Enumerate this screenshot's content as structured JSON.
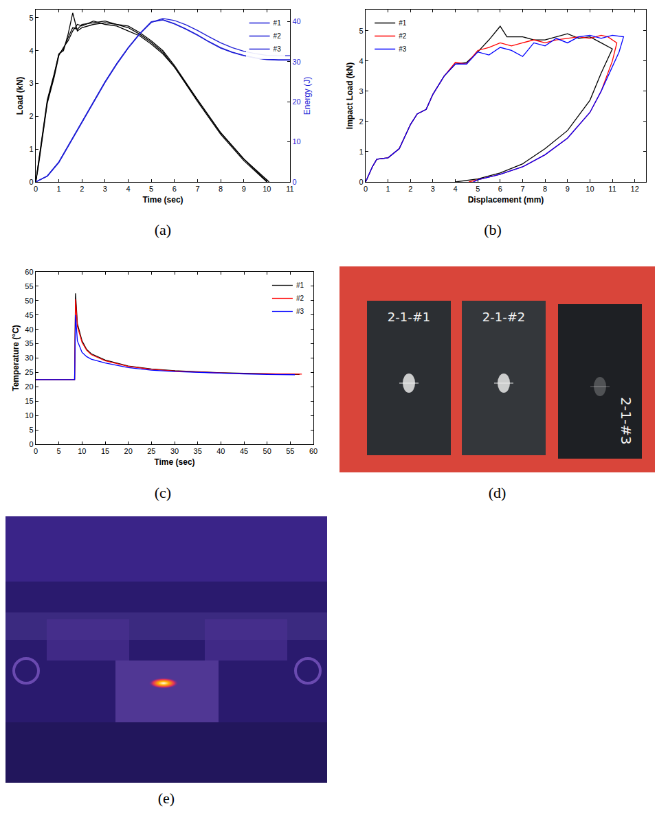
{
  "chart_data": [
    {
      "type": "line",
      "title": "(a)",
      "x_label": "Time (sec)",
      "y_label": "Load (kN)",
      "y2_label": "Energy (J)",
      "xlim": [
        0,
        11
      ],
      "xticks": [
        0,
        1,
        2,
        3,
        4,
        5,
        6,
        7,
        8,
        9,
        10,
        11
      ],
      "ylim": [
        0,
        5.25
      ],
      "yticks": [
        0,
        1,
        2,
        3,
        4,
        5
      ],
      "y2lim": [
        0,
        43
      ],
      "y2ticks": [
        0,
        10,
        20,
        30,
        40
      ],
      "legend": "upper right",
      "series": [
        {
          "color": "#000000",
          "axis": "y",
          "x": [
            0,
            0.1,
            0.3,
            0.5,
            0.8,
            1.0,
            1.2,
            1.4,
            1.6,
            1.8,
            2.0,
            2.5,
            3.0,
            3.5,
            4.0,
            4.5,
            5.0,
            5.5,
            6.0,
            7.0,
            8.0,
            9.0,
            10.0,
            10.1
          ],
          "values": [
            0,
            0.5,
            1.5,
            2.5,
            3.3,
            3.9,
            4.0,
            4.5,
            5.15,
            4.6,
            4.7,
            4.8,
            4.85,
            4.8,
            4.75,
            4.55,
            4.3,
            4.0,
            3.55,
            2.5,
            1.5,
            0.7,
            0.05,
            0
          ]
        },
        {
          "color": "#000000",
          "axis": "y",
          "x": [
            0,
            0.1,
            0.3,
            0.5,
            0.8,
            1.0,
            1.2,
            1.4,
            1.6,
            1.8,
            2.0,
            2.5,
            3.0,
            3.5,
            4.0,
            4.5,
            5.0,
            5.5,
            6.0,
            7.0,
            8.0,
            9.0,
            10.0
          ],
          "values": [
            0,
            0.4,
            1.4,
            2.4,
            3.2,
            3.85,
            4.1,
            4.3,
            4.6,
            4.8,
            4.75,
            4.9,
            4.8,
            4.75,
            4.6,
            4.45,
            4.2,
            3.9,
            3.5,
            2.45,
            1.45,
            0.65,
            0
          ]
        },
        {
          "color": "#000000",
          "axis": "y",
          "x": [
            0,
            0.1,
            0.3,
            0.5,
            0.8,
            1.0,
            1.2,
            1.4,
            1.6,
            1.8,
            2.0,
            2.5,
            3.0,
            3.5,
            4.0,
            4.5,
            5.0,
            5.5,
            6.0,
            7.0,
            8.0,
            9.0,
            10.0
          ],
          "values": [
            0,
            0.45,
            1.45,
            2.45,
            3.25,
            3.9,
            4.05,
            4.4,
            4.7,
            4.65,
            4.8,
            4.85,
            4.9,
            4.8,
            4.7,
            4.5,
            4.25,
            3.95,
            3.5,
            2.5,
            1.5,
            0.7,
            0.02
          ]
        },
        {
          "name": "#1",
          "color": "#1f1fd6",
          "axis": "y2",
          "x": [
            0,
            0.5,
            1,
            1.5,
            2,
            2.5,
            3,
            3.5,
            4,
            4.5,
            5,
            5.5,
            6,
            6.5,
            7,
            7.5,
            8,
            8.5,
            9,
            9.5,
            10,
            10.5,
            11
          ],
          "values": [
            0,
            1.5,
            5,
            10,
            15,
            20,
            25,
            29.5,
            33.5,
            37,
            40,
            40.5,
            39.5,
            38.2,
            36.7,
            35,
            33.5,
            32.4,
            31.6,
            31,
            30.6,
            30.5,
            30.5
          ]
        },
        {
          "name": "#2",
          "color": "#1f1fd6",
          "axis": "y2",
          "x": [
            0,
            0.5,
            1,
            1.5,
            2,
            2.5,
            3,
            3.5,
            4,
            4.5,
            5,
            5.5,
            6,
            6.5,
            7,
            7.5,
            8,
            8.5,
            9,
            9.5,
            10,
            10.5,
            11
          ],
          "values": [
            0,
            1.4,
            4.8,
            9.8,
            14.8,
            19.8,
            24.8,
            29.3,
            33.4,
            36.9,
            39.8,
            40.8,
            40.3,
            39.2,
            37.8,
            36.2,
            34.7,
            33.5,
            32.6,
            32,
            31.6,
            31.5,
            31.5
          ]
        },
        {
          "name": "#3",
          "color": "#1f1fd6",
          "axis": "y2",
          "x": [
            0,
            0.5,
            1,
            1.5,
            2,
            2.5,
            3,
            3.5,
            4,
            4.5,
            5,
            5.5,
            6,
            6.5,
            7,
            7.5,
            8,
            8.5,
            9,
            9.5,
            10,
            10.5,
            11
          ],
          "values": [
            0,
            1.5,
            5,
            10,
            15,
            20,
            25,
            29.5,
            33.5,
            37,
            39.9,
            40.4,
            39.4,
            38.1,
            36.6,
            34.9,
            33.4,
            32.3,
            31.5,
            30.9,
            30.5,
            30.4,
            30.4
          ]
        }
      ]
    },
    {
      "type": "line",
      "title": "(b)",
      "x_label": "Displacement (mm)",
      "y_label": "Impact Load (kN)",
      "xlim": [
        0,
        12.5
      ],
      "xticks": [
        0,
        1,
        2,
        3,
        4,
        5,
        6,
        7,
        8,
        9,
        10,
        11,
        12
      ],
      "ylim": [
        0,
        5.7
      ],
      "yticks": [
        0,
        1,
        2,
        3,
        4,
        5
      ],
      "legend": "upper left",
      "series": [
        {
          "name": "#1",
          "color": "#000000",
          "x": [
            0,
            0.3,
            0.5,
            1,
            1.5,
            2,
            2.3,
            2.7,
            3,
            3.5,
            4,
            4.5,
            5,
            5.5,
            6,
            6.3,
            7,
            7.5,
            8,
            8.5,
            9,
            9.5,
            10,
            10.5,
            11,
            10.5,
            10,
            9,
            8,
            7,
            6,
            5,
            4
          ],
          "values": [
            0,
            0.5,
            0.75,
            0.8,
            1.1,
            1.9,
            2.25,
            2.4,
            2.9,
            3.5,
            3.9,
            3.95,
            4.3,
            4.7,
            5.15,
            4.8,
            4.8,
            4.7,
            4.7,
            4.8,
            4.9,
            4.75,
            4.8,
            4.6,
            4.4,
            3.6,
            2.7,
            1.7,
            1.1,
            0.6,
            0.3,
            0.1,
            0
          ]
        },
        {
          "name": "#2",
          "color": "#ff0000",
          "x": [
            0,
            0.3,
            0.5,
            1,
            1.5,
            2,
            2.3,
            2.7,
            3,
            3.5,
            4,
            4.5,
            5,
            5.5,
            6,
            6.5,
            7,
            7.5,
            8,
            8.5,
            9,
            9.5,
            10,
            10.5,
            10.8,
            11.2,
            11,
            10.5,
            10,
            9,
            8,
            7,
            6,
            5,
            4.6
          ],
          "values": [
            0,
            0.5,
            0.75,
            0.8,
            1.1,
            1.9,
            2.25,
            2.4,
            2.9,
            3.5,
            3.95,
            3.9,
            4.35,
            4.45,
            4.6,
            4.5,
            4.6,
            4.7,
            4.6,
            4.7,
            4.75,
            4.8,
            4.75,
            4.85,
            4.8,
            4.6,
            4.0,
            3.0,
            2.3,
            1.45,
            0.9,
            0.5,
            0.25,
            0.07,
            0
          ]
        },
        {
          "name": "#3",
          "color": "#0000ff",
          "x": [
            0,
            0.3,
            0.5,
            1,
            1.5,
            2,
            2.3,
            2.7,
            3,
            3.5,
            4,
            4.5,
            5,
            5.5,
            6,
            6.5,
            7,
            7.5,
            8,
            8.5,
            9,
            9.5,
            10,
            10.5,
            11,
            11.5,
            11.3,
            11,
            10.5,
            10,
            9,
            8,
            7,
            6,
            5,
            4.8
          ],
          "values": [
            0,
            0.5,
            0.75,
            0.8,
            1.1,
            1.9,
            2.25,
            2.4,
            2.9,
            3.5,
            3.9,
            3.9,
            4.3,
            4.2,
            4.45,
            4.35,
            4.15,
            4.6,
            4.5,
            4.75,
            4.6,
            4.8,
            4.85,
            4.75,
            4.85,
            4.8,
            4.3,
            3.8,
            3.0,
            2.3,
            1.45,
            0.9,
            0.5,
            0.25,
            0.07,
            0
          ]
        }
      ]
    },
    {
      "type": "line",
      "title": "(c)",
      "x_label": "Time (sec)",
      "y_label": "Temperature (°C)",
      "xlim": [
        0,
        60
      ],
      "xticks": [
        0,
        5,
        10,
        15,
        20,
        25,
        30,
        35,
        40,
        45,
        50,
        55,
        60
      ],
      "ylim": [
        0,
        60
      ],
      "yticks": [
        0,
        5,
        10,
        15,
        20,
        25,
        30,
        35,
        40,
        45,
        50,
        55,
        60
      ],
      "legend": "upper right",
      "series": [
        {
          "name": "#1",
          "color": "#000000",
          "x": [
            0,
            8.4,
            8.6,
            9,
            10,
            11,
            12,
            15,
            20,
            25,
            30,
            35,
            40,
            45,
            50,
            55,
            57
          ],
          "values": [
            22.5,
            22.5,
            52.5,
            42,
            36,
            33,
            31.5,
            29.3,
            27.2,
            26.2,
            25.6,
            25.2,
            24.9,
            24.7,
            24.5,
            24.3,
            24.3
          ]
        },
        {
          "name": "#2",
          "color": "#ff0000",
          "x": [
            0,
            8.4,
            8.6,
            9,
            10,
            11,
            12,
            15,
            20,
            25,
            30,
            35,
            40,
            45,
            50,
            55,
            57.5
          ],
          "values": [
            22.5,
            22.5,
            50.5,
            41,
            35.5,
            32.7,
            31.2,
            29.1,
            27.1,
            26.1,
            25.5,
            25.1,
            24.8,
            24.6,
            24.5,
            24.4,
            24.4
          ]
        },
        {
          "name": "#3",
          "color": "#0000ff",
          "x": [
            0,
            8.4,
            8.6,
            9,
            10,
            11,
            12,
            15,
            20,
            25,
            30,
            35,
            40,
            45,
            50,
            55,
            56
          ],
          "values": [
            22.5,
            22.5,
            45,
            36,
            32,
            30.5,
            29.6,
            28.3,
            26.7,
            25.8,
            25.3,
            25,
            24.7,
            24.5,
            24.3,
            24.2,
            24.2
          ]
        }
      ]
    }
  ],
  "photos": [
    {
      "title": "(d)",
      "labels": [
        "2-1-#1",
        "2-1-#2",
        "2-1-#3"
      ]
    },
    {
      "title": "(e)"
    }
  ]
}
